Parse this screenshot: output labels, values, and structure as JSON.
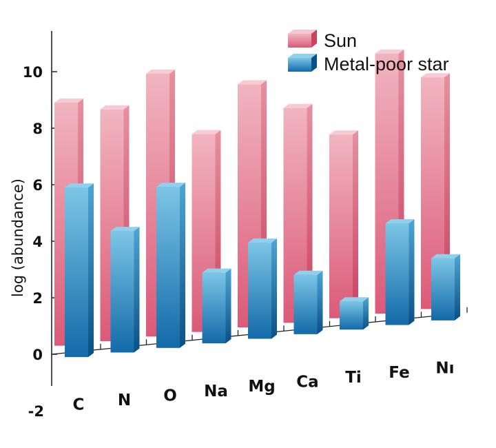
{
  "chart_data": {
    "type": "bar",
    "title": "",
    "xlabel": "",
    "ylabel": "log (abundance)",
    "categories": [
      "C",
      "N",
      "O",
      "Na",
      "Mg",
      "Ca",
      "Ti",
      "Fe",
      "Ni"
    ],
    "category_labels": [
      "C",
      "N",
      "O",
      "Na",
      "Mg",
      "Ca",
      "Ti",
      "Fe",
      "Nı"
    ],
    "series": [
      {
        "name": "Sun",
        "values": [
          8.6,
          8.2,
          9.3,
          7.0,
          8.6,
          7.6,
          6.5,
          9.2,
          8.2
        ],
        "color": "#e0607c"
      },
      {
        "name": "Metal-poor star",
        "values": [
          6.0,
          4.3,
          5.7,
          2.5,
          3.4,
          2.1,
          1.0,
          3.6,
          2.2
        ],
        "color": "#2a8cc8"
      }
    ],
    "ylim": [
      -2,
      11
    ],
    "yticks": [
      "10",
      "8",
      "6",
      "4",
      "2",
      "0",
      "-2"
    ],
    "yticks_values": [
      10,
      8,
      6,
      4,
      2,
      0,
      -2
    ],
    "grid": false,
    "legend_position": "top-right",
    "style": "3d-bars"
  }
}
